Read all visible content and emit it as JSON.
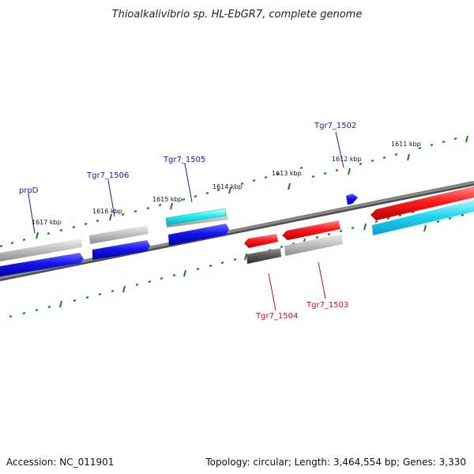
{
  "title": "Thioalkalivibrio sp. HL-EbGR7, complete genome",
  "accession": "Accession: NC_011901",
  "topology": "Topology: circular; Length: 3,464,554 bp; Genes: 3,330",
  "kbp_labels": [
    "1611 kbp",
    "1612 kbp",
    "1613 kbp",
    "1614 kbp",
    "1615 kbp",
    "1616 kbp",
    "1617 kbp"
  ],
  "gene_labels_top": [
    "Tgr7_1502",
    "Tgr7_1505",
    "Tgr7_1506",
    "prpD"
  ],
  "gene_labels_bottom": [
    "Tgr7_1503",
    "Tgr7_1504"
  ],
  "colors": {
    "backbone": "#7a7a7a",
    "forward_gene": "#ee1111",
    "reverse_gene": "#1111dd",
    "cds_forward": "#33bbee",
    "cds_reverse": "#bdbdbd",
    "selected": "#11dddd",
    "tick": "#1a7a1a"
  }
}
